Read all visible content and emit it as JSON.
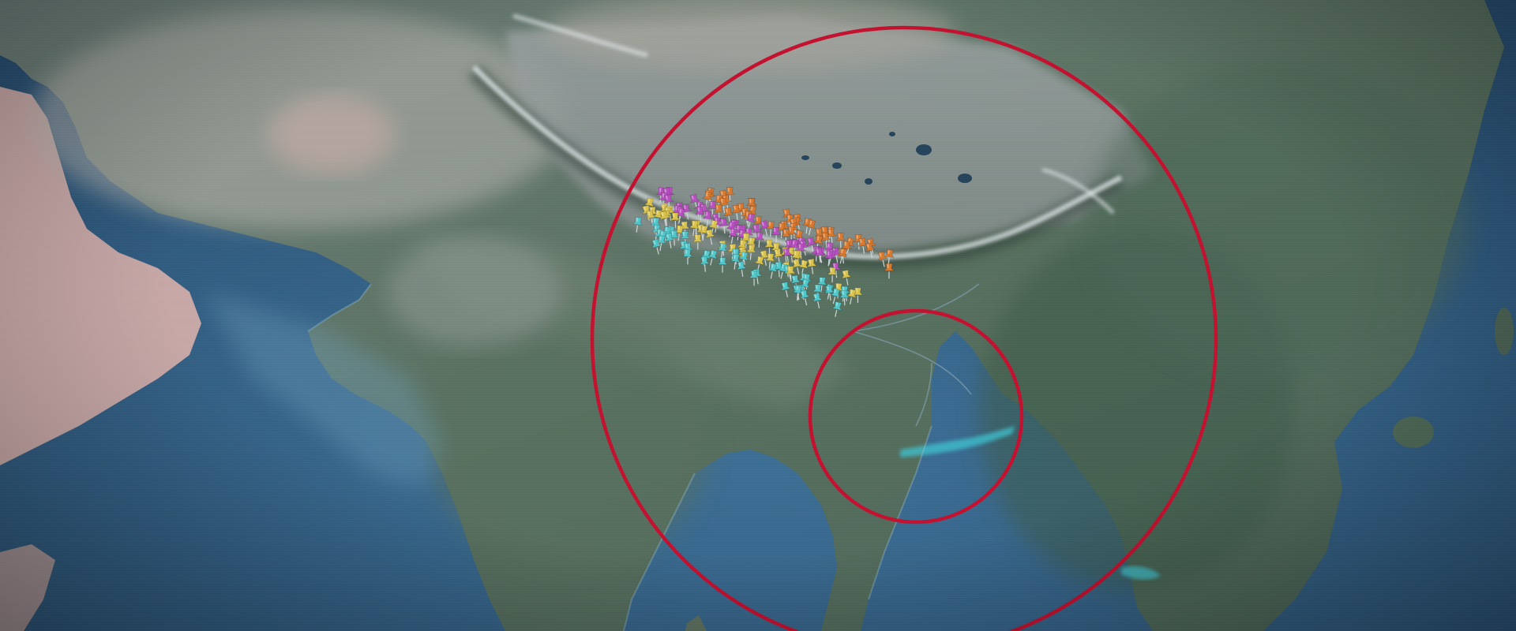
{
  "map": {
    "view": "satellite",
    "colors": {
      "ocean_deep": "#2c5d85",
      "ocean_shallow": "#5f93b4",
      "land_green": "#56705f",
      "land_dark": "#3c5449",
      "plateau": "#8f9798",
      "desert": "#c9b0ac",
      "snow": "#e6eef0",
      "circle_stroke": "#c3102e"
    }
  },
  "overlays": {
    "circles": [
      {
        "name": "outer-radius-circle",
        "color": "#c3102e"
      },
      {
        "name": "inner-radius-circle",
        "color": "#c3102e"
      }
    ],
    "pin_groups": [
      {
        "name": "magenta",
        "color": "#b84fc0"
      },
      {
        "name": "orange",
        "color": "#d9782c"
      },
      {
        "name": "yellow",
        "color": "#d9c24a"
      },
      {
        "name": "cyan",
        "color": "#4fc6c9"
      }
    ],
    "pin_count_approx": 200
  }
}
